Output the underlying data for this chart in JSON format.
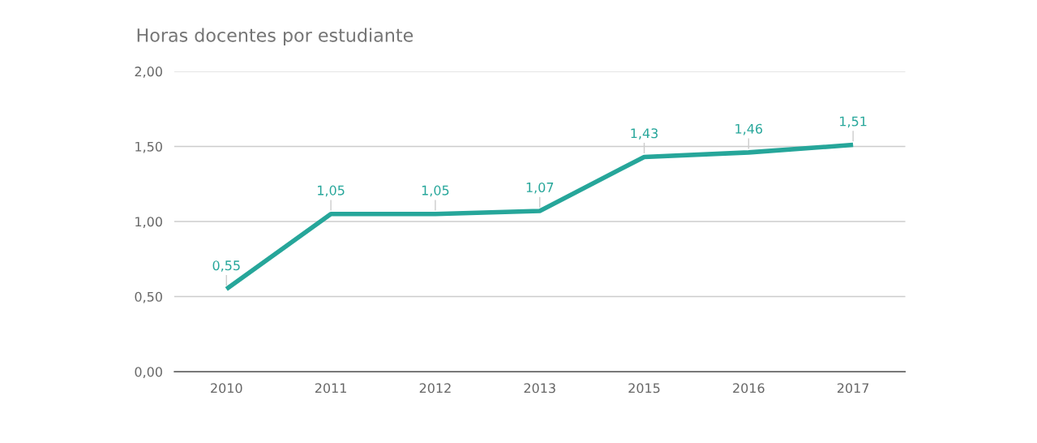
{
  "chart_data": {
    "type": "line",
    "title": "Horas docentes por estudiante",
    "categories": [
      "2010",
      "2011",
      "2012",
      "2013",
      "2015",
      "2016",
      "2017"
    ],
    "series": [
      {
        "color": "#26a69a",
        "values": [
          0.55,
          1.05,
          1.05,
          1.07,
          1.43,
          1.46,
          1.51
        ],
        "value_labels": [
          "0,55",
          "1,05",
          "1,05",
          "1,07",
          "1,43",
          "1,46",
          "1,51"
        ]
      }
    ],
    "ylim": [
      0,
      2
    ],
    "yticks": [
      {
        "value": 0,
        "label": "0,00"
      },
      {
        "value": 0.5,
        "label": "0,50"
      },
      {
        "value": 1,
        "label": "1,00"
      },
      {
        "value": 1.5,
        "label": "1,50"
      },
      {
        "value": 2,
        "label": "2,00"
      }
    ],
    "grid": "y",
    "marker": "none",
    "line_style": "solid",
    "legend": false
  }
}
